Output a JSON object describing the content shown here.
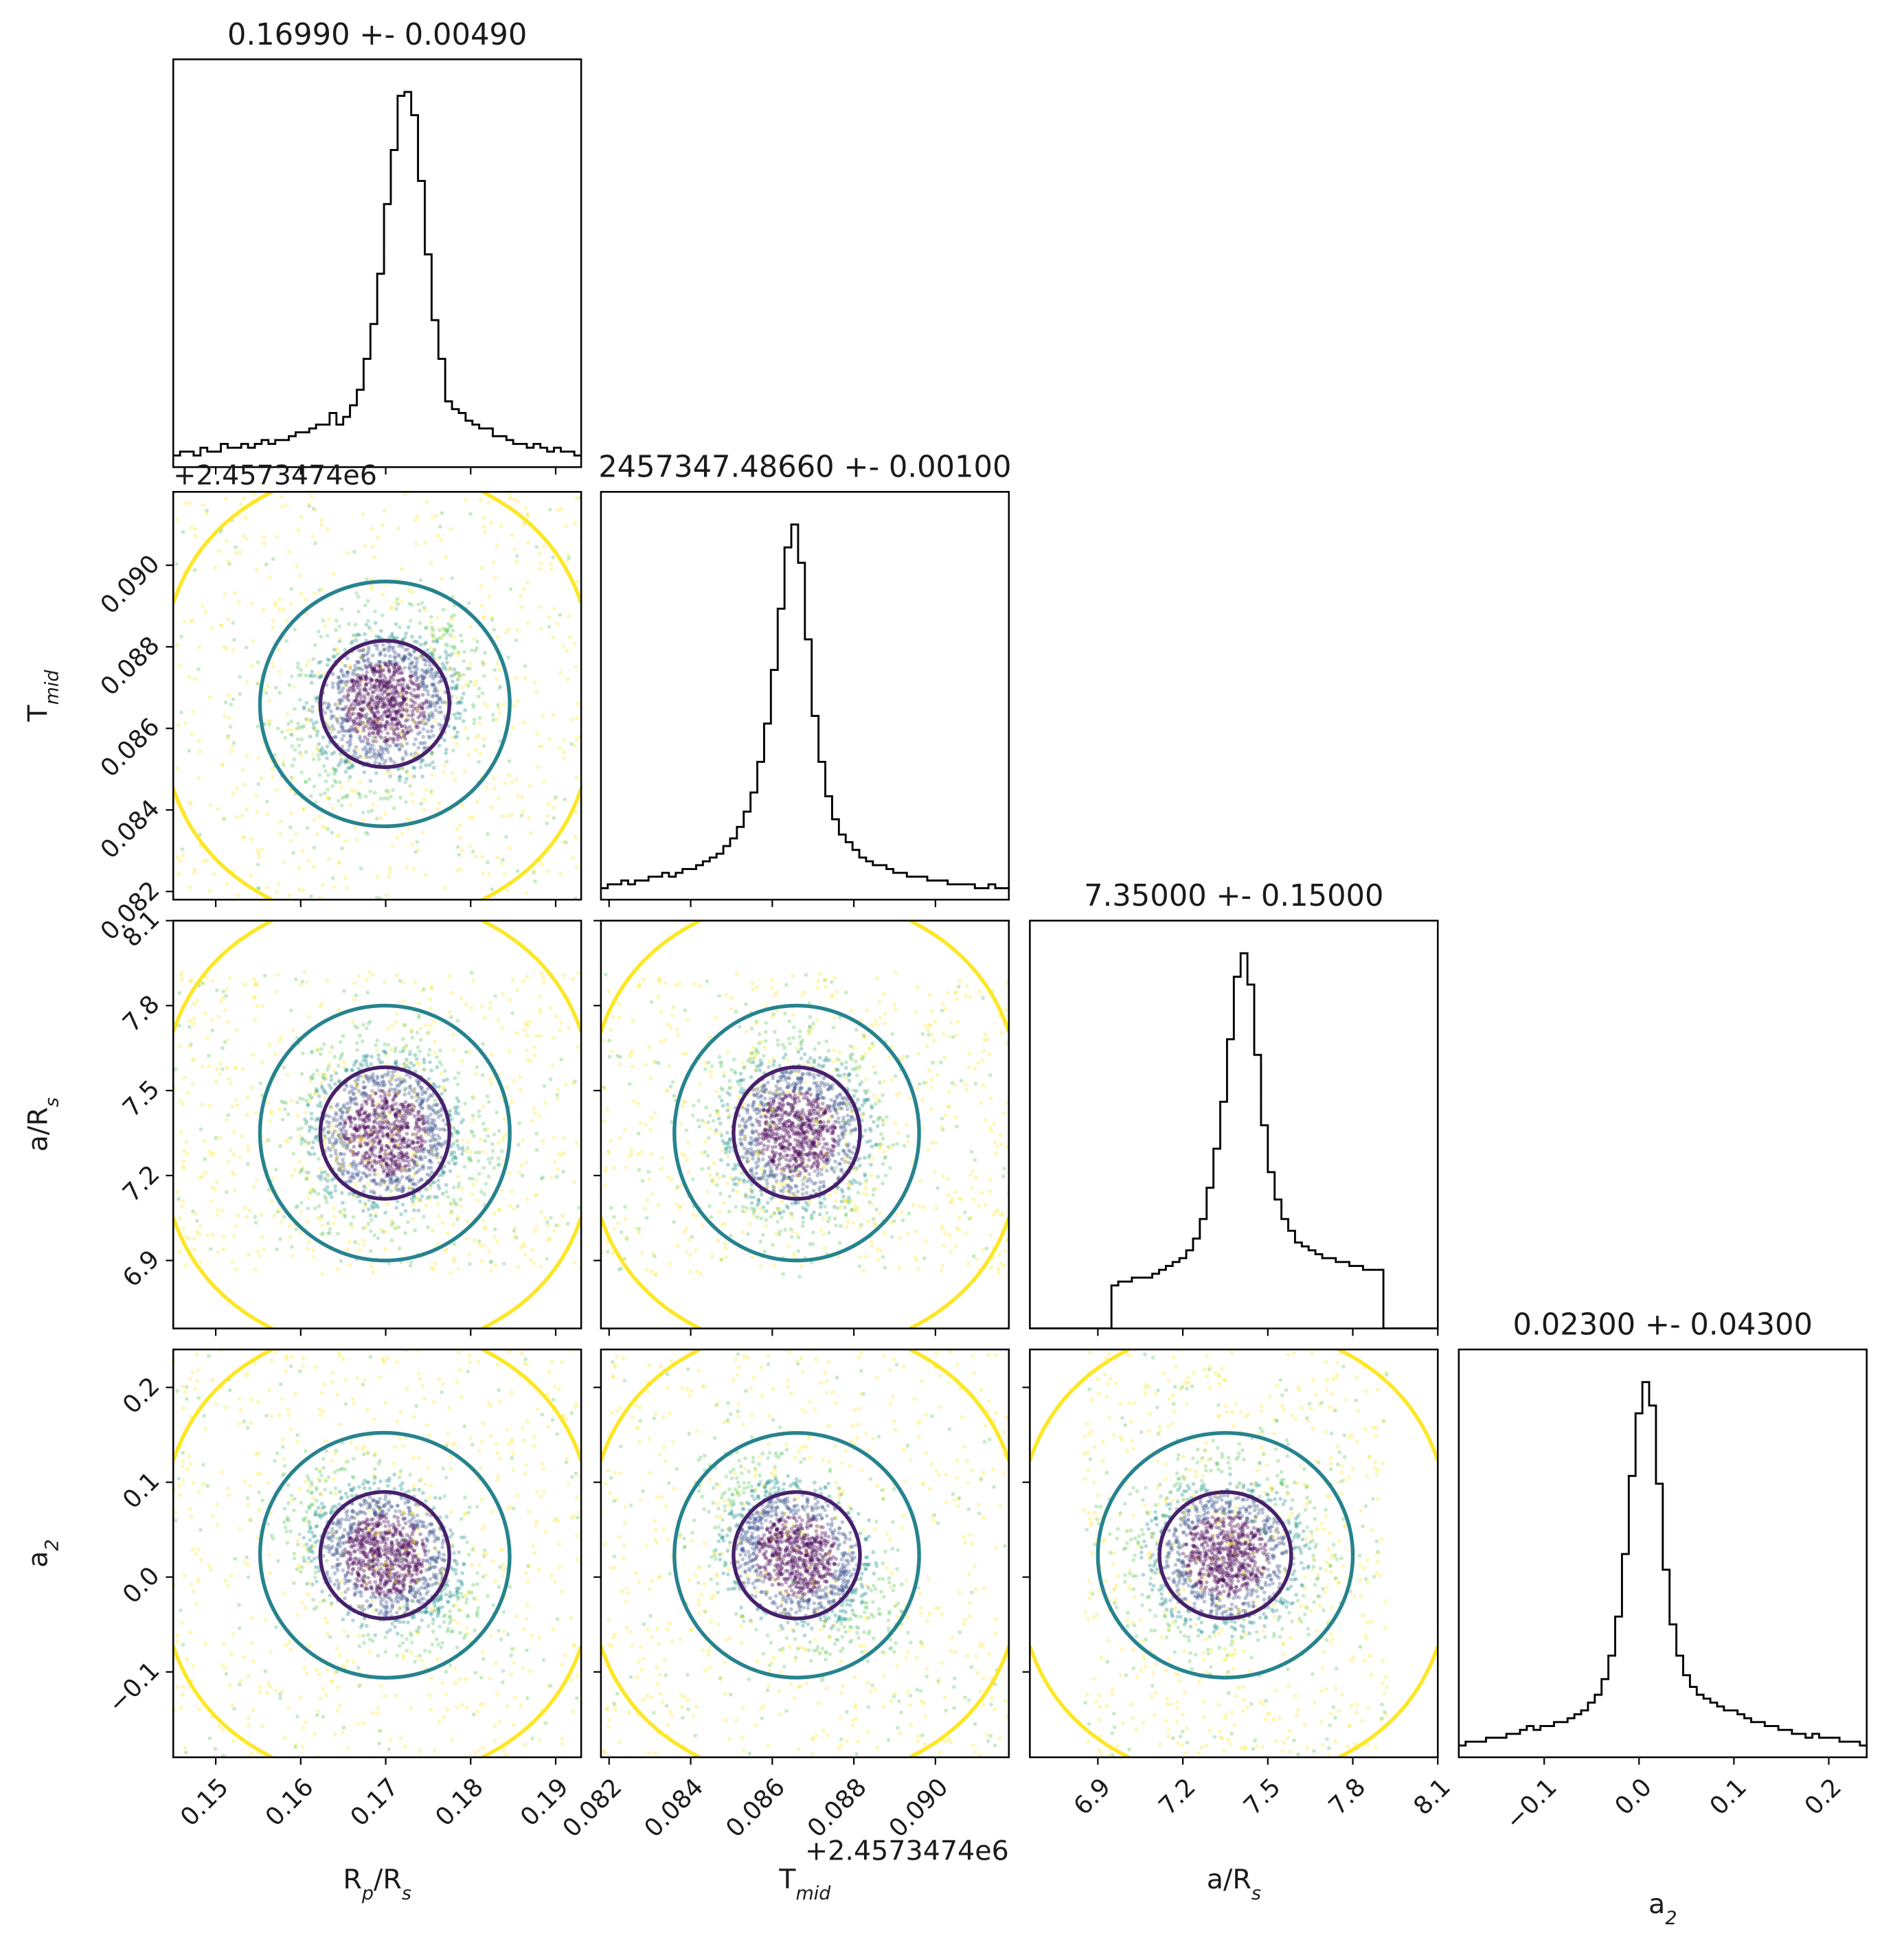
{
  "chart_data": {
    "type": "scatter",
    "subtype": "corner-plot",
    "colors": {
      "hist": "#000000",
      "axes": "#000000",
      "background": "#ffffff",
      "contour_inner": "#46216a",
      "contour_mid": "#26838e",
      "contour_outer": "#fde725",
      "points": [
        "#440154",
        "#3b528b",
        "#21918c",
        "#5ec962",
        "#fde725"
      ]
    },
    "parameters": [
      {
        "key": "rp",
        "label": "R",
        "label_sub": "p",
        "label_suffix": "/R",
        "label_suffix_sub": "s",
        "title": "0.16990 +- 0.00490",
        "mean": 0.1699,
        "std": 0.0049,
        "range": [
          0.145,
          0.193
        ],
        "ticks": [
          0.15,
          0.16,
          0.17,
          0.18,
          0.19
        ],
        "tick_labels": [
          "0.15",
          "0.16",
          "0.17",
          "0.18",
          "0.19"
        ],
        "offset_text": ""
      },
      {
        "key": "tmid",
        "label": "T",
        "label_sub": "mid",
        "label_suffix": "",
        "label_suffix_sub": "",
        "title": "2457347.48660 +- 0.00100",
        "mean": 0.0866,
        "std": 0.001,
        "range": [
          0.0818,
          0.0918
        ],
        "ticks": [
          0.082,
          0.084,
          0.086,
          0.088,
          0.09
        ],
        "tick_labels": [
          "0.082",
          "0.084",
          "0.086",
          "0.088",
          "0.090"
        ],
        "offset_text": "+2.4573474e6"
      },
      {
        "key": "ars",
        "label": "a/R",
        "label_sub": "s",
        "label_suffix": "",
        "label_suffix_sub": "",
        "title": "7.35000 +- 0.15000",
        "mean": 7.35,
        "std": 0.15,
        "range": [
          6.66,
          8.1
        ],
        "ticks": [
          6.9,
          7.2,
          7.5,
          7.8,
          8.1
        ],
        "tick_labels": [
          "6.9",
          "7.2",
          "7.5",
          "7.8",
          "8.1"
        ],
        "offset_text": ""
      },
      {
        "key": "a2",
        "label": "a",
        "label_sub": "2",
        "label_suffix": "",
        "label_suffix_sub": "",
        "title": "0.02300 +- 0.04300",
        "mean": 0.023,
        "std": 0.043,
        "range": [
          -0.19,
          0.24
        ],
        "ticks": [
          -0.1,
          0.0,
          0.1,
          0.2
        ],
        "tick_labels": [
          "−0.1",
          "0.0",
          "0.1",
          "0.2"
        ],
        "offset_text": ""
      }
    ],
    "uniform_support": {
      "ars": [
        6.85,
        7.92
      ]
    },
    "correlations": {
      "tmid|rp": 0.25,
      "ars|rp": 0.0,
      "ars|tmid": 0.0,
      "a2|rp": -0.4,
      "a2|tmid": -0.45,
      "a2|ars": 0.0
    },
    "histograms": {
      "rp": {
        "bin_edges": [
          0.145,
          0.193
        ],
        "counts": [
          3,
          4,
          4,
          3,
          5,
          4,
          4,
          6,
          5,
          5,
          6,
          5,
          6,
          7,
          6,
          7,
          7,
          8,
          9,
          9,
          10,
          11,
          11,
          14,
          11,
          13,
          16,
          20,
          28,
          37,
          50,
          68,
          82,
          96,
          97,
          91,
          74,
          55,
          38,
          28,
          17,
          15,
          14,
          12,
          11,
          10,
          10,
          8,
          8,
          7,
          6,
          6,
          5,
          6,
          5,
          4,
          5,
          4,
          4,
          3
        ]
      },
      "tmid": {
        "bin_edges": [
          0.0818,
          0.0918
        ],
        "counts": [
          3,
          4,
          4,
          5,
          4,
          5,
          5,
          6,
          6,
          7,
          6,
          7,
          8,
          8,
          9,
          10,
          11,
          12,
          14,
          16,
          19,
          23,
          28,
          36,
          46,
          60,
          76,
          92,
          98,
          88,
          68,
          48,
          36,
          27,
          21,
          17,
          15,
          13,
          11,
          10,
          9,
          9,
          8,
          7,
          7,
          6,
          6,
          6,
          5,
          5,
          5,
          4,
          4,
          4,
          4,
          3,
          3,
          4,
          3,
          3
        ]
      },
      "ars": {
        "bin_edges": [
          6.66,
          8.1
        ],
        "counts": [
          0,
          0,
          0,
          0,
          0,
          0,
          0,
          0,
          0,
          0,
          0,
          0,
          11,
          12,
          12,
          13,
          13,
          13,
          14,
          15,
          16,
          17,
          18,
          20,
          23,
          28,
          36,
          46,
          58,
          74,
          90,
          96,
          88,
          70,
          52,
          40,
          33,
          28,
          25,
          22,
          21,
          20,
          19,
          18,
          18,
          17,
          17,
          16,
          16,
          15,
          15,
          15,
          0,
          0,
          0,
          0,
          0,
          0,
          0,
          0
        ]
      },
      "a2": {
        "bin_edges": [
          -0.19,
          0.24
        ],
        "counts": [
          3,
          4,
          4,
          4,
          5,
          5,
          5,
          6,
          6,
          7,
          8,
          7,
          8,
          8,
          9,
          9,
          10,
          11,
          12,
          14,
          16,
          20,
          26,
          36,
          52,
          72,
          88,
          96,
          90,
          70,
          48,
          34,
          26,
          21,
          18,
          16,
          15,
          14,
          13,
          12,
          12,
          11,
          10,
          9,
          9,
          8,
          8,
          7,
          7,
          6,
          6,
          5,
          6,
          5,
          5,
          5,
          4,
          4,
          4,
          3
        ]
      }
    },
    "grid": false
  }
}
